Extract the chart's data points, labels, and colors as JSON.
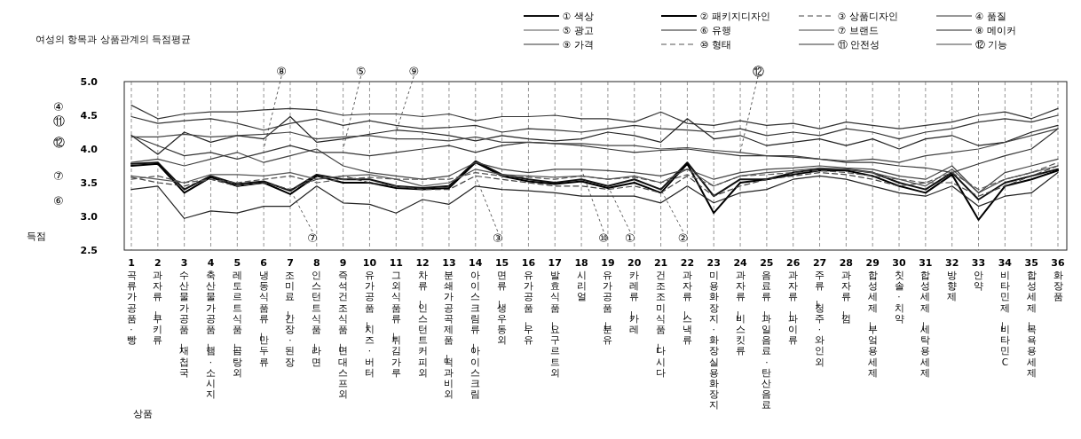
{
  "chart_data": {
    "type": "line",
    "title": "여성의 항목과 상품관계의 득점평균",
    "ylabel": "득점",
    "categories": [
      "1 곡류가공품·빵",
      "2 과자류—쿠키류",
      "3 수산물가공품—재첩국",
      "4 축산물가공품—햄·소시지",
      "5 레토르트식품—곰탕외",
      "6 냉동식품류—만두류",
      "7 조미료—간장·된장",
      "8 인스턴트식품—라면",
      "9 즉석건조식품—면대스프외",
      "10 유가공품—치즈·버터",
      "11 그외식품류—튀김가루",
      "12 차류—인스턴트커피외",
      "13 분쇄가공곡제품—떡과비외",
      "14 아이스크림류—아이스크림",
      "15 면류—생우동외",
      "16 유가공품—우유",
      "17 발효식품—요구르트외",
      "18 시리얼",
      "19 유가공품—분유",
      "20 카레류—카레",
      "21 건조조미식품—다시다",
      "22 과자류—스낵류",
      "23 미용화장지·화장실용화장지",
      "24 과자류—비스킷류",
      "25 음료류—과일음료·탄산음료",
      "26 과자류—파이류",
      "27 주류—청주·와인외",
      "28 과자류—껌",
      "29 합성세제—부엌용세제",
      "30 칫솔·치약",
      "31 합성세제—세탁용세제",
      "32 방향제",
      "33 안약",
      "34 비타민제—비타민C",
      "35 합성세제—목욕용세제",
      "36 화장품"
    ],
    "ylim": [
      2.5,
      5.0
    ],
    "yticks": [
      {
        "value": 2.5,
        "label": "2.5"
      },
      {
        "value": 3,
        "label": "3.0"
      },
      {
        "value": 3.5,
        "label": "3.5"
      },
      {
        "value": 4,
        "label": "4.0"
      },
      {
        "value": 4.5,
        "label": "4.5"
      },
      {
        "value": 5,
        "label": "5.0"
      }
    ],
    "grid": "x",
    "legend": "top right",
    "marker": "none",
    "series": [
      {
        "name": "① 색상",
        "color": "#111111",
        "values": [
          3.78,
          3.8,
          3.4,
          3.6,
          3.48,
          3.52,
          3.38,
          3.62,
          3.55,
          3.55,
          3.45,
          3.42,
          3.45,
          3.82,
          3.62,
          3.55,
          3.5,
          3.55,
          3.45,
          3.55,
          3.4,
          3.8,
          3.3,
          3.55,
          3.55,
          3.65,
          3.7,
          3.7,
          3.65,
          3.5,
          3.4,
          3.65,
          3.25,
          3.5,
          3.6,
          3.7
        ]
      },
      {
        "name": "② 패키지디자인",
        "color": "#000000",
        "values": [
          3.75,
          3.78,
          3.35,
          3.58,
          3.45,
          3.5,
          3.33,
          3.6,
          3.5,
          3.5,
          3.42,
          3.4,
          3.42,
          3.8,
          3.6,
          3.52,
          3.48,
          3.52,
          3.42,
          3.5,
          3.35,
          3.78,
          3.05,
          3.5,
          3.55,
          3.62,
          3.68,
          3.68,
          3.6,
          3.45,
          3.35,
          3.62,
          2.95,
          3.45,
          3.55,
          3.68
        ]
      },
      {
        "name": "③ 상품디자인",
        "color": "#444444",
        "line_style": "dashed",
        "values": [
          3.58,
          3.5,
          3.45,
          3.55,
          3.45,
          3.5,
          3.4,
          3.55,
          3.6,
          3.5,
          3.45,
          3.4,
          3.4,
          3.6,
          3.55,
          3.5,
          3.45,
          3.45,
          3.4,
          3.45,
          3.35,
          3.6,
          3.3,
          3.45,
          3.55,
          3.6,
          3.65,
          3.62,
          3.55,
          3.45,
          3.5,
          3.5,
          3.3,
          3.45,
          3.6,
          3.75
        ]
      },
      {
        "name": "④ 품질",
        "color": "#333333",
        "values": [
          4.65,
          4.45,
          4.52,
          4.55,
          4.55,
          4.58,
          4.6,
          4.58,
          4.5,
          4.52,
          4.52,
          4.48,
          4.52,
          4.42,
          4.48,
          4.48,
          4.5,
          4.45,
          4.45,
          4.4,
          4.55,
          4.38,
          4.35,
          4.42,
          4.35,
          4.38,
          4.3,
          4.4,
          4.35,
          4.3,
          4.35,
          4.4,
          4.5,
          4.55,
          4.45,
          4.6
        ]
      },
      {
        "name": "⑤ 광고",
        "color": "#555555",
        "values": [
          3.6,
          3.55,
          3.5,
          3.62,
          3.62,
          3.6,
          3.65,
          3.55,
          3.6,
          3.62,
          3.55,
          3.45,
          3.5,
          3.7,
          3.62,
          3.6,
          3.58,
          3.6,
          3.55,
          3.6,
          3.5,
          3.7,
          3.45,
          3.6,
          3.65,
          3.68,
          3.72,
          3.7,
          3.65,
          3.55,
          3.45,
          3.7,
          3.35,
          3.55,
          3.65,
          3.75
        ]
      },
      {
        "name": "⑥ 유행",
        "color": "#222222",
        "values": [
          3.4,
          3.45,
          2.97,
          3.08,
          3.05,
          3.15,
          3.15,
          3.45,
          3.2,
          3.18,
          3.05,
          3.25,
          3.18,
          3.45,
          3.4,
          3.38,
          3.35,
          3.3,
          3.3,
          3.3,
          3.2,
          3.45,
          3.2,
          3.35,
          3.4,
          3.55,
          3.6,
          3.55,
          3.45,
          3.35,
          3.3,
          3.45,
          3.15,
          3.3,
          3.35,
          3.65
        ]
      },
      {
        "name": "⑦ 브랜드",
        "color": "#444444",
        "values": [
          3.8,
          3.85,
          3.75,
          3.85,
          3.95,
          3.8,
          3.9,
          4.0,
          3.75,
          3.65,
          3.6,
          3.55,
          3.6,
          3.8,
          3.7,
          3.65,
          3.7,
          3.7,
          3.68,
          3.65,
          3.6,
          3.7,
          3.55,
          3.65,
          3.7,
          3.72,
          3.75,
          3.72,
          3.7,
          3.6,
          3.55,
          3.75,
          3.35,
          3.65,
          3.75,
          3.85
        ]
      },
      {
        "name": "⑧ 메이커",
        "color": "#222222",
        "values": [
          4.2,
          3.92,
          4.25,
          4.1,
          4.2,
          4.15,
          4.48,
          4.1,
          4.15,
          4.22,
          4.28,
          4.25,
          4.2,
          4.12,
          4.2,
          4.15,
          4.12,
          4.15,
          4.25,
          4.2,
          4.1,
          4.45,
          4.15,
          4.2,
          4.05,
          4.1,
          4.15,
          4.05,
          4.15,
          4.0,
          4.15,
          4.2,
          4.05,
          4.1,
          4.25,
          4.35
        ]
      },
      {
        "name": "⑨ 가격",
        "color": "#333333",
        "values": [
          4.2,
          4.05,
          3.9,
          3.95,
          3.85,
          3.95,
          4.05,
          3.95,
          3.95,
          3.9,
          3.95,
          4.0,
          4.05,
          3.95,
          4.05,
          4.1,
          4.08,
          4.05,
          4.0,
          3.95,
          3.98,
          4.0,
          3.95,
          3.9,
          3.9,
          3.88,
          3.85,
          3.8,
          3.8,
          3.75,
          3.72,
          3.65,
          3.78,
          3.9,
          4.0,
          4.3
        ]
      },
      {
        "name": "⑩ 형태",
        "color": "#555555",
        "line_style": "dashed",
        "values": [
          3.55,
          3.6,
          3.5,
          3.55,
          3.5,
          3.55,
          3.6,
          3.5,
          3.55,
          3.58,
          3.55,
          3.55,
          3.55,
          3.65,
          3.6,
          3.58,
          3.55,
          3.6,
          3.55,
          3.58,
          3.5,
          3.62,
          3.45,
          3.6,
          3.62,
          3.65,
          3.68,
          3.65,
          3.6,
          3.55,
          3.5,
          3.65,
          3.4,
          3.55,
          3.65,
          3.8
        ]
      },
      {
        "name": "⑪ 안전성",
        "color": "#333333",
        "values": [
          4.48,
          4.38,
          4.42,
          4.45,
          4.38,
          4.28,
          4.38,
          4.45,
          4.35,
          4.42,
          4.35,
          4.3,
          4.32,
          4.35,
          4.25,
          4.3,
          4.28,
          4.25,
          4.3,
          4.35,
          4.3,
          4.28,
          4.25,
          4.3,
          4.2,
          4.25,
          4.2,
          4.3,
          4.25,
          4.15,
          4.25,
          4.3,
          4.4,
          4.45,
          4.4,
          4.5
        ]
      },
      {
        "name": "⑫ 기능",
        "color": "#444444",
        "values": [
          4.18,
          4.18,
          4.22,
          4.18,
          4.2,
          4.22,
          4.25,
          4.15,
          4.18,
          4.2,
          4.15,
          4.15,
          4.12,
          4.18,
          4.1,
          4.1,
          4.08,
          4.08,
          4.05,
          4.05,
          4.0,
          4.02,
          3.98,
          3.95,
          3.9,
          3.9,
          3.85,
          3.82,
          3.85,
          3.8,
          3.9,
          3.95,
          4.0,
          4.1,
          4.2,
          4.3
        ]
      }
    ],
    "annotations": [
      "④",
      "⑪",
      "⑫",
      "⑦",
      "⑥",
      "상품",
      {
        "text": "⑧",
        "x": "6 냉동식품류—만두류",
        "y": 4.0
      },
      {
        "text": "⑤",
        "x": "9 즉석건조식품—면대스프외",
        "y": 4.0
      },
      {
        "text": "⑨",
        "x": "11 그외식품류—튀김가루",
        "y": 4.25
      },
      {
        "text": "⑩",
        "x": "18 시리얼",
        "y": 3.7
      },
      {
        "text": "⑫",
        "x": "24 과자류—비스킷류",
        "y": 3.95
      },
      {
        "text": "⑦",
        "x": "7 조미료—간장·된장",
        "y": 3.4
      },
      {
        "text": "③",
        "x": "14 아이스크림류—아이스크림",
        "y": 3.6
      },
      {
        "text": "①",
        "x": "19 유가공품—분유",
        "y": 3.45
      },
      {
        "text": "②",
        "x": "21 건조조미식품—다시다",
        "y": 3.4
      }
    ]
  }
}
